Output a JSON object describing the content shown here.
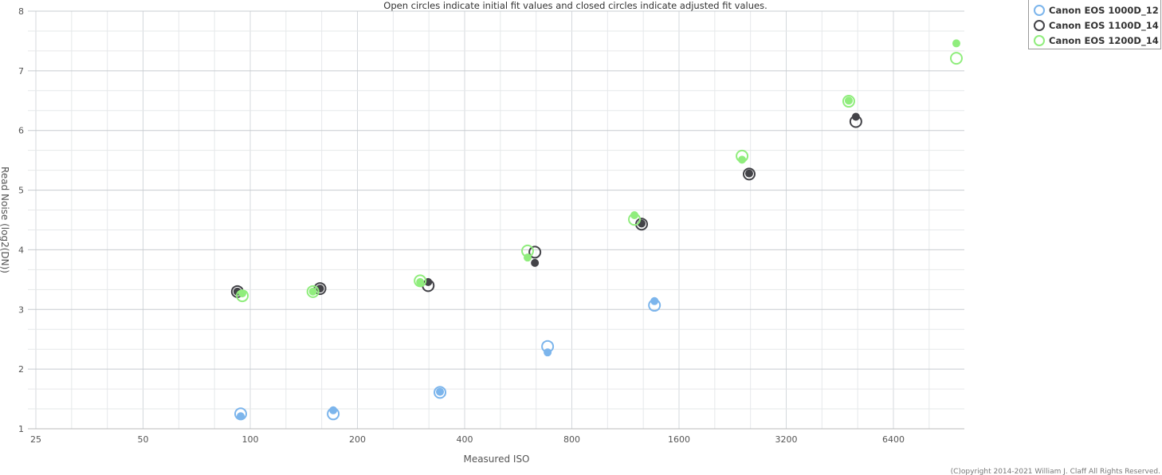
{
  "chart_data": {
    "type": "scatter",
    "subtitle": "Open circles indicate initial fit values and closed circles indicate adjusted fit values.",
    "xlabel": "Measured ISO",
    "ylabel": "Read Noise (log2(DN))",
    "x_scale": "log2",
    "xlim": [
      22,
      10100
    ],
    "ylim": [
      1,
      8
    ],
    "x_ticks": [
      "25",
      "50",
      "100",
      "200",
      "400",
      "800",
      "1600",
      "3200",
      "6400"
    ],
    "y_ticks": [
      "1",
      "2",
      "3",
      "4",
      "5",
      "6",
      "7",
      "8"
    ],
    "grid": true,
    "legend_position": "top-right",
    "series": [
      {
        "name": "Canon EOS 1000D_12",
        "color": "#7cb5ec",
        "x": [
          94,
          171,
          341,
          684,
          1365
        ],
        "initial": [
          1.25,
          1.25,
          1.61,
          2.38,
          3.07
        ],
        "adjusted": [
          1.21,
          1.31,
          1.62,
          2.28,
          3.14
        ]
      },
      {
        "name": "Canon EOS 1100D_14",
        "color": "#434348",
        "x": [
          92,
          157,
          316,
          630,
          1256,
          2518,
          5020
        ],
        "initial": [
          3.3,
          3.35,
          3.4,
          3.96,
          4.43,
          5.27,
          6.15
        ],
        "adjusted": [
          3.3,
          3.35,
          3.46,
          3.78,
          4.44,
          5.28,
          6.23
        ]
      },
      {
        "name": "Canon EOS 1200D_14",
        "color": "#90ed7d",
        "x": [
          95,
          150,
          300,
          601,
          1199,
          2405,
          4795,
          9615
        ],
        "initial": [
          3.23,
          3.3,
          3.48,
          3.98,
          4.51,
          5.57,
          6.49,
          7.21
        ],
        "adjusted": [
          3.27,
          3.3,
          3.46,
          3.87,
          4.58,
          5.51,
          6.5,
          7.46
        ]
      }
    ]
  },
  "copyright": "(C)opyright 2014-2021 William J. Claff All Rights Reserved."
}
